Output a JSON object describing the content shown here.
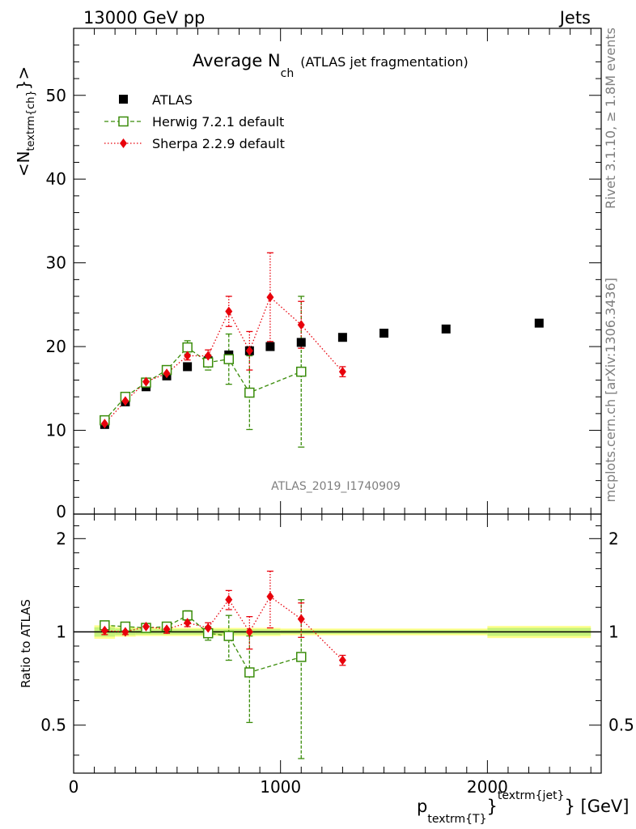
{
  "header": {
    "left": "13000 GeV pp",
    "right": "Jets"
  },
  "title": {
    "main": "Average N",
    "sub": "ch",
    "extra": "(ATLAS jet fragmentation)"
  },
  "side_labels": {
    "rivet": "Rivet 3.1.10, ≥ 1.8M events",
    "mcplots": "mcplots.cern.ch [arXiv:1306.3436]"
  },
  "watermark": "ATLAS_2019_I1740909",
  "axes": {
    "ylabel_main": {
      "pre": "<N",
      "sub": "textrm{ch}",
      "post": "}>"
    },
    "ylabel_ratio": "Ratio to ATLAS",
    "xlabel": {
      "p": "p",
      "sub": "textrm{T}",
      "mid": "}",
      "sup": "textrm{jet}",
      "post": "} [GeV]"
    }
  },
  "colors": {
    "atlas": "#000000",
    "herwig": "#3a8c0a",
    "sherpa": "#e8000b",
    "band_inner": "#c6f27a",
    "band_outer": "#ffff8c"
  },
  "chart_data": [
    {
      "type": "scatter",
      "panel": "main",
      "xlim": [
        0,
        2550
      ],
      "ylim": [
        0,
        58
      ],
      "yticks": [
        10,
        20,
        30,
        40,
        50
      ],
      "ytick_labels": [
        "10",
        "20",
        "30",
        "40",
        "50"
      ],
      "bottom_tick_label": "0",
      "legend_position": "top-left",
      "series": [
        {
          "name": "ATLAS",
          "marker": "square-filled",
          "x": [
            150,
            250,
            350,
            450,
            550,
            650,
            750,
            850,
            950,
            1100,
            1300,
            1500,
            1800,
            2250
          ],
          "y": [
            10.7,
            13.4,
            15.2,
            16.5,
            17.6,
            18.3,
            19.0,
            19.5,
            20.0,
            20.5,
            21.1,
            21.6,
            22.1,
            22.8
          ]
        },
        {
          "name": "Herwig 7.2.1 default",
          "marker": "square-open",
          "line": "dashed",
          "x": [
            150,
            250,
            350,
            450,
            550,
            650,
            750,
            850,
            1100
          ],
          "y": [
            11.2,
            14.0,
            15.7,
            17.2,
            19.9,
            18.1,
            18.5,
            14.5,
            17.0
          ],
          "err": [
            0.3,
            0.4,
            0.4,
            0.5,
            0.8,
            0.9,
            3.0,
            4.4,
            9.0
          ]
        },
        {
          "name": "Sherpa 2.2.9 default",
          "marker": "diamond-filled",
          "line": "dotted",
          "x": [
            150,
            250,
            350,
            450,
            550,
            650,
            750,
            850,
            950,
            1100,
            1300
          ],
          "y": [
            10.8,
            13.5,
            15.8,
            16.8,
            18.9,
            18.9,
            24.2,
            19.5,
            25.9,
            22.6,
            17.0
          ],
          "err": [
            0.3,
            0.3,
            0.4,
            0.4,
            0.5,
            0.7,
            1.8,
            2.3,
            5.3,
            2.8,
            0.6
          ]
        }
      ]
    },
    {
      "type": "scatter",
      "panel": "ratio",
      "xlim": [
        0,
        2550
      ],
      "ylim": [
        0.35,
        2.4
      ],
      "yscale": "log",
      "yticks": [
        0.5,
        1,
        2
      ],
      "ytick_labels": [
        "0.5",
        "1",
        "2"
      ],
      "xticks": [
        0,
        1000,
        2000
      ],
      "xtick_labels": [
        "0",
        "1000",
        "2000"
      ],
      "reference": 1,
      "series": [
        {
          "name": "Herwig 7.2.1 default",
          "x": [
            150,
            250,
            350,
            450,
            550,
            650,
            750,
            850,
            1100
          ],
          "y": [
            1.05,
            1.04,
            1.03,
            1.04,
            1.13,
            0.99,
            0.97,
            0.74,
            0.83
          ],
          "err": [
            0.03,
            0.03,
            0.03,
            0.03,
            0.04,
            0.05,
            0.16,
            0.23,
            0.44
          ]
        },
        {
          "name": "Sherpa 2.2.9 default",
          "x": [
            150,
            250,
            350,
            450,
            550,
            650,
            750,
            850,
            950,
            1100,
            1300
          ],
          "y": [
            1.01,
            1.0,
            1.04,
            1.02,
            1.07,
            1.03,
            1.27,
            1.0,
            1.3,
            1.1,
            0.81
          ],
          "err": [
            0.03,
            0.02,
            0.02,
            0.03,
            0.03,
            0.04,
            0.09,
            0.12,
            0.27,
            0.14,
            0.03
          ]
        }
      ]
    }
  ]
}
